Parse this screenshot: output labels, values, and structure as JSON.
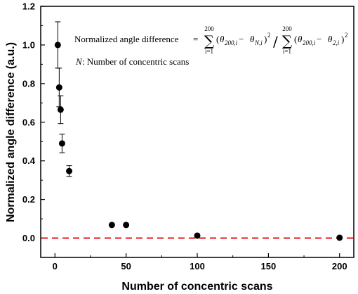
{
  "chart_data": {
    "type": "scatter",
    "xlabel": "Number of concentric scans",
    "ylabel": "Normalized angle difference (a.u.)",
    "xlim": [
      -10,
      210
    ],
    "ylim": [
      -0.1,
      1.2
    ],
    "x_ticks": [
      0,
      50,
      100,
      150,
      200
    ],
    "y_ticks": [
      0.0,
      0.2,
      0.4,
      0.6,
      0.8,
      1.0,
      1.2
    ],
    "x_tick_labels": [
      "0",
      "50",
      "100",
      "150",
      "200"
    ],
    "y_tick_labels": [
      "0.0",
      "0.2",
      "0.4",
      "0.6",
      "0.8",
      "1.0",
      "1.2"
    ],
    "reference_line": {
      "y": 0.0,
      "style": "dashed",
      "color": "#e8141c"
    },
    "marker_color": "#000000",
    "points": [
      {
        "x": 2,
        "y": 1.0,
        "err": 0.12
      },
      {
        "x": 3,
        "y": 0.78,
        "err": 0.1
      },
      {
        "x": 4,
        "y": 0.665,
        "err": 0.072
      },
      {
        "x": 5,
        "y": 0.49,
        "err": 0.048
      },
      {
        "x": 10,
        "y": 0.347,
        "err": 0.028
      },
      {
        "x": 40,
        "y": 0.068,
        "err": 0
      },
      {
        "x": 50,
        "y": 0.068,
        "err": 0
      },
      {
        "x": 100,
        "y": 0.013,
        "err": 0
      },
      {
        "x": 200,
        "y": 0.002,
        "err": 0
      }
    ],
    "annotation": {
      "line1_label": "Normalized angle difference",
      "equals": "=",
      "sum": "∑",
      "sum_upper": "200",
      "sum_lower": "i=1",
      "num_open": "(",
      "num_theta1": "θ",
      "num_sub1": "200,i",
      "num_minus": " − ",
      "num_theta2": "θ",
      "num_sub2": "N,i",
      "num_close": ")",
      "sq": "2",
      "slash": "/",
      "den_sub2": "2,i",
      "line2_n": "N",
      "line2_text": " : Number of concentric scans"
    }
  }
}
